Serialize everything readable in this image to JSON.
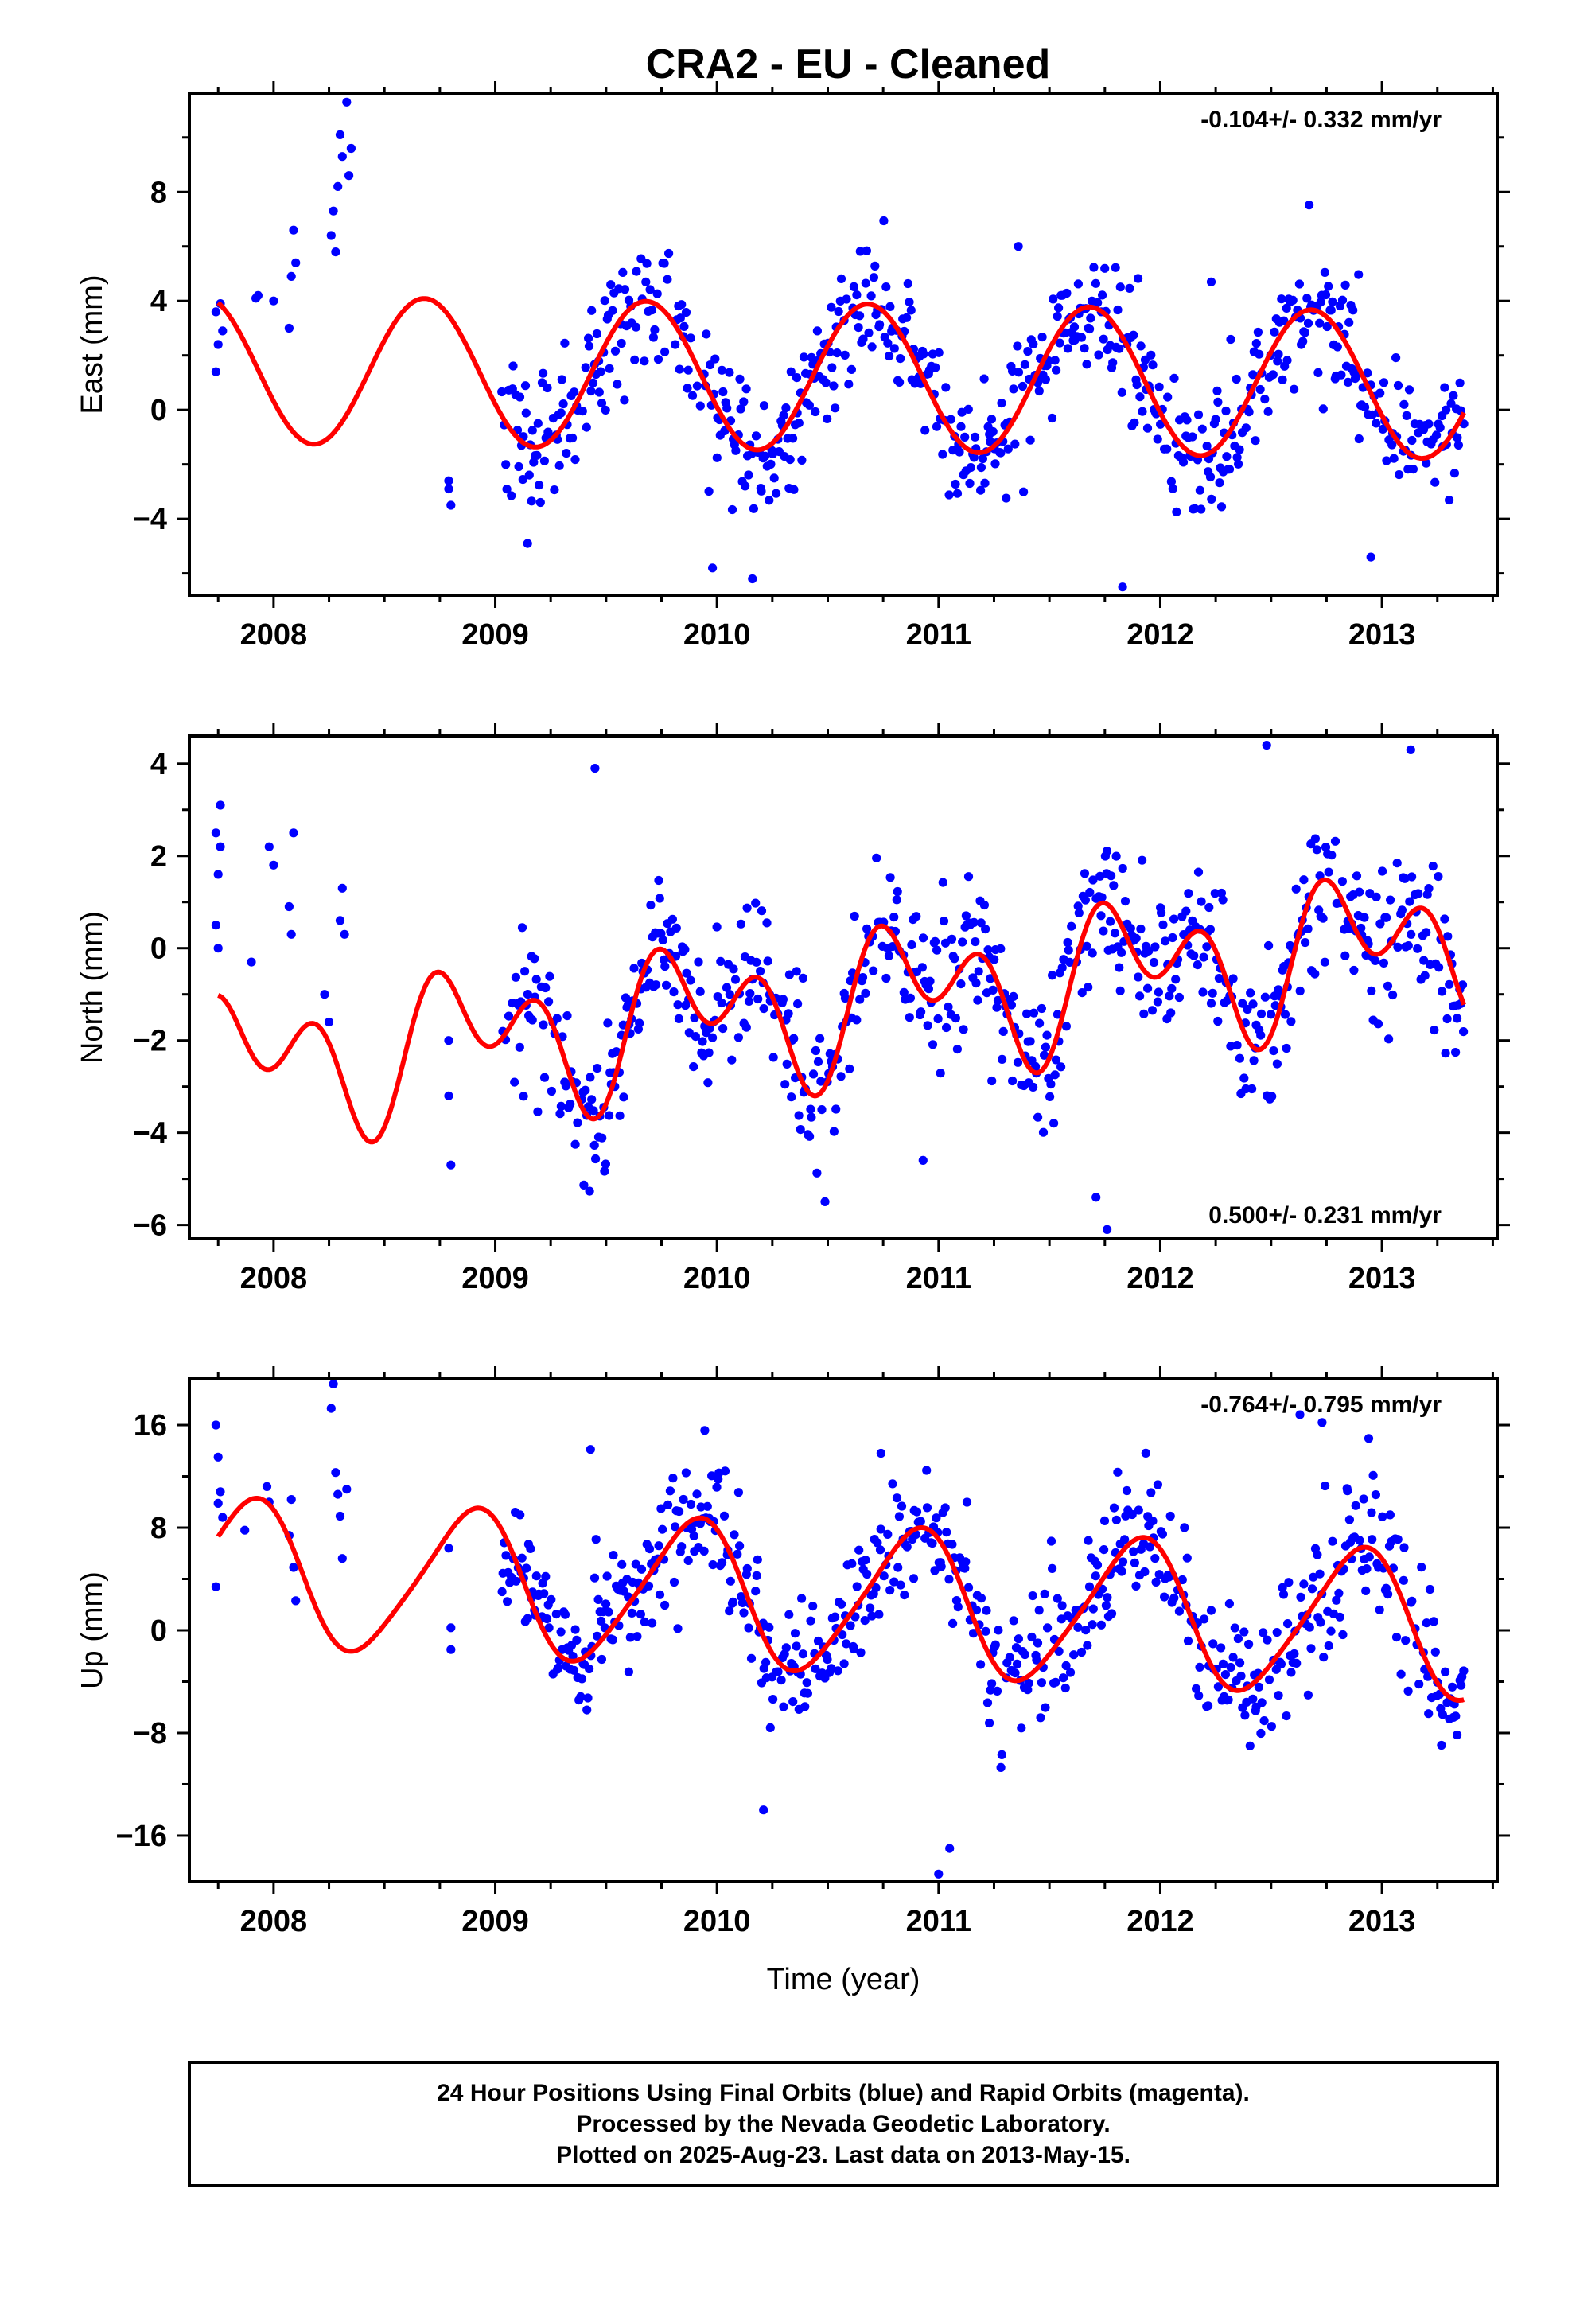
{
  "chart_data": {
    "title": "CRA2  - EU - Cleaned",
    "type": "scatter",
    "xlabel": "Time (year)",
    "x_ticks": [
      "2008",
      "2009",
      "2010",
      "2011",
      "2012",
      "2013"
    ],
    "xlim": [
      2007.62,
      2013.52
    ],
    "last_data": 2013.37,
    "colors": {
      "points": "#0000ff",
      "fit": "#ff0000",
      "frame": "#000000"
    },
    "panels": [
      {
        "name": "east",
        "ylabel": "East (mm)",
        "ylim": [
          -6.8,
          11.6
        ],
        "y_ticks": [
          8,
          4,
          0,
          -4
        ],
        "y_tick_labels": [
          "8",
          "4",
          "0",
          "−4"
        ],
        "rate_label": "-0.104+/- 0.332 mm/yr",
        "rate_position": "top-right",
        "fit": {
          "offset": 1.2,
          "slope": -0.104,
          "annual_amp": 2.7,
          "annual_phase_deg": -65,
          "semi_amp": 0.0,
          "semi_phase_deg": 0
        },
        "noise_sd": 1.2,
        "early_points": [
          [
            2007.74,
            1.4
          ],
          [
            2007.74,
            3.6
          ],
          [
            2007.75,
            2.4
          ],
          [
            2007.76,
            3.9
          ],
          [
            2007.77,
            2.9
          ],
          [
            2007.92,
            4.1
          ],
          [
            2007.93,
            4.2
          ],
          [
            2008.0,
            4.0
          ],
          [
            2008.07,
            3.0
          ],
          [
            2008.08,
            4.9
          ],
          [
            2008.09,
            6.6
          ],
          [
            2008.1,
            5.4
          ],
          [
            2008.26,
            6.4
          ],
          [
            2008.27,
            7.3
          ],
          [
            2008.28,
            5.8
          ],
          [
            2008.29,
            8.2
          ],
          [
            2008.3,
            10.1
          ],
          [
            2008.31,
            9.3
          ],
          [
            2008.33,
            11.3
          ],
          [
            2008.34,
            8.6
          ],
          [
            2008.35,
            9.6
          ],
          [
            2008.79,
            -2.6
          ],
          [
            2008.8,
            -3.5
          ],
          [
            2008.79,
            -2.9
          ]
        ],
        "outliers": [
          [
            2009.98,
            -5.8
          ],
          [
            2010.16,
            -6.2
          ],
          [
            2011.83,
            -6.5
          ],
          [
            2012.95,
            -5.4
          ],
          [
            2012.23,
            4.7
          ],
          [
            2011.36,
            6.0
          ]
        ]
      },
      {
        "name": "north",
        "ylabel": "North (mm)",
        "ylim": [
          -6.3,
          4.6
        ],
        "y_ticks": [
          4,
          2,
          0,
          -2,
          -4,
          -6
        ],
        "y_tick_labels": [
          "4",
          "2",
          "0",
          "−2",
          "−4",
          "−6"
        ],
        "rate_label": "0.500+/- 0.231 mm/yr",
        "rate_position": "bottom-right",
        "fit": {
          "offset": -1.2,
          "slope": 0.5,
          "annual_amp": 1.0,
          "annual_phase_deg": -140,
          "semi_amp": 1.05,
          "semi_phase_deg": -150
        },
        "noise_sd": 0.85,
        "early_points": [
          [
            2007.74,
            2.5
          ],
          [
            2007.75,
            1.6
          ],
          [
            2007.76,
            3.1
          ],
          [
            2007.74,
            0.5
          ],
          [
            2007.75,
            0.0
          ],
          [
            2007.76,
            2.2
          ],
          [
            2007.9,
            -0.3
          ],
          [
            2007.98,
            2.2
          ],
          [
            2008.0,
            1.8
          ],
          [
            2008.07,
            0.9
          ],
          [
            2008.08,
            0.3
          ],
          [
            2008.09,
            2.5
          ],
          [
            2008.23,
            -1.0
          ],
          [
            2008.25,
            -1.6
          ],
          [
            2008.3,
            0.6
          ],
          [
            2008.31,
            1.3
          ],
          [
            2008.32,
            0.3
          ],
          [
            2008.79,
            -2.0
          ],
          [
            2008.79,
            -3.2
          ],
          [
            2008.8,
            -4.7
          ]
        ],
        "outliers": [
          [
            2011.71,
            -5.4
          ],
          [
            2011.76,
            -6.1
          ],
          [
            2012.48,
            4.4
          ],
          [
            2013.13,
            4.3
          ],
          [
            2009.45,
            3.9
          ],
          [
            2010.93,
            -4.6
          ]
        ]
      },
      {
        "name": "up",
        "ylabel": "Up (mm)",
        "ylim": [
          -19.6,
          19.6
        ],
        "y_ticks": [
          16,
          8,
          0,
          -8,
          -16
        ],
        "y_tick_labels": [
          "16",
          "8",
          "0",
          "−8",
          "−16"
        ],
        "rate_label": "-0.764+/- 0.795 mm/yr",
        "rate_position": "top-right",
        "fit": {
          "offset": 2.4,
          "slope": -0.764,
          "annual_amp": 5.6,
          "annual_phase_deg": -140,
          "semi_amp": 0.8,
          "semi_phase_deg": 0
        },
        "noise_sd": 2.8,
        "early_points": [
          [
            2007.74,
            16.0
          ],
          [
            2007.75,
            13.5
          ],
          [
            2007.76,
            10.8
          ],
          [
            2007.77,
            8.8
          ],
          [
            2007.75,
            9.9
          ],
          [
            2007.74,
            3.4
          ],
          [
            2007.87,
            7.8
          ],
          [
            2007.97,
            11.2
          ],
          [
            2007.98,
            10.0
          ],
          [
            2008.07,
            7.4
          ],
          [
            2008.08,
            10.2
          ],
          [
            2008.09,
            4.9
          ],
          [
            2008.1,
            2.3
          ],
          [
            2008.26,
            17.3
          ],
          [
            2008.27,
            19.2
          ],
          [
            2008.28,
            12.3
          ],
          [
            2008.29,
            10.6
          ],
          [
            2008.3,
            8.9
          ],
          [
            2008.31,
            5.6
          ],
          [
            2008.33,
            11.0
          ],
          [
            2008.79,
            6.4
          ],
          [
            2008.8,
            0.2
          ],
          [
            2008.8,
            -1.5
          ]
        ],
        "outliers": [
          [
            2010.74,
            13.8
          ],
          [
            2009.43,
            14.1
          ],
          [
            2011.0,
            -19.0
          ],
          [
            2011.05,
            -17.0
          ],
          [
            2012.63,
            16.8
          ],
          [
            2012.73,
            16.2
          ],
          [
            2010.21,
            -14.0
          ]
        ]
      }
    ],
    "footer_lines": [
      "24 Hour Positions Using Final Orbits (blue) and Rapid Orbits (magenta).",
      "Processed by the Nevada Geodetic Laboratory.",
      "Plotted on 2025-Aug-23. Last data on 2013-May-15."
    ]
  }
}
